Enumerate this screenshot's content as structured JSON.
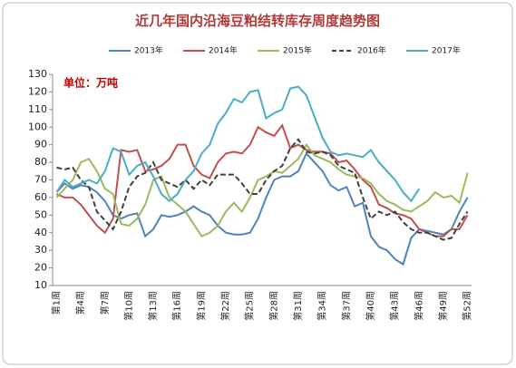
{
  "chart_data": {
    "type": "line",
    "title": "近几年国内沿海豆粕结转库存周度趋势图",
    "annotation": "单位：万吨",
    "categories": [
      "第1周",
      null,
      null,
      "第4周",
      null,
      null,
      "第7周",
      null,
      null,
      "第10周",
      null,
      null,
      "第13周",
      null,
      null,
      "第16周",
      null,
      null,
      "第19周",
      null,
      null,
      "第22周",
      null,
      null,
      "第25周",
      null,
      null,
      "第28周",
      null,
      null,
      "第31周",
      null,
      null,
      "第34周",
      null,
      null,
      "第37周",
      null,
      null,
      "第40周",
      null,
      null,
      "第43周",
      null,
      null,
      "第46周",
      null,
      null,
      "第49周",
      null,
      null,
      "第52周"
    ],
    "ylim": [
      10,
      130
    ],
    "yticks": [
      10,
      20,
      30,
      40,
      50,
      60,
      70,
      80,
      90,
      100,
      110,
      120,
      130
    ],
    "grid": false,
    "legend": "top",
    "series": [
      {
        "name": "2013年",
        "color": "#4f81bd",
        "style": "solid",
        "values": [
          63,
          68,
          65,
          67,
          66,
          63,
          58,
          50,
          48,
          50,
          51,
          38,
          42,
          50,
          49,
          50,
          52,
          55,
          52,
          50,
          44,
          40,
          39,
          39,
          40,
          48,
          60,
          70,
          72,
          72,
          75,
          85,
          80,
          75,
          67,
          64,
          66,
          55,
          57,
          38,
          32,
          30,
          25,
          22,
          37,
          42,
          41,
          40,
          39,
          42,
          52,
          60
        ]
      },
      {
        "name": "2014年",
        "color": "#c0504d",
        "style": "solid",
        "values": [
          62,
          60,
          60,
          56,
          50,
          44,
          40,
          48,
          87,
          86,
          87,
          75,
          76,
          78,
          82,
          90,
          90,
          78,
          73,
          71,
          80,
          85,
          86,
          85,
          90,
          100,
          97,
          95,
          101,
          88,
          90,
          87,
          86,
          86,
          85,
          80,
          81,
          76,
          70,
          66,
          56,
          54,
          51,
          50,
          48,
          42,
          40,
          38,
          38,
          42,
          42,
          50
        ]
      },
      {
        "name": "2015年",
        "color": "#9bbb59",
        "style": "solid",
        "values": [
          60,
          65,
          70,
          80,
          82,
          75,
          65,
          62,
          45,
          44,
          48,
          56,
          70,
          72,
          60,
          56,
          52,
          45,
          38,
          40,
          44,
          52,
          57,
          52,
          60,
          70,
          72,
          75,
          74,
          78,
          82,
          90,
          84,
          82,
          80,
          76,
          73,
          72,
          71,
          68,
          62,
          58,
          56,
          53,
          52,
          55,
          58,
          63,
          60,
          61,
          57,
          74
        ]
      },
      {
        "name": "2016年",
        "color": "#404040",
        "style": "dashed",
        "values": [
          77,
          76,
          77,
          70,
          66,
          52,
          47,
          42,
          52,
          66,
          72,
          74,
          80,
          70,
          68,
          66,
          70,
          65,
          70,
          67,
          73,
          73,
          73,
          68,
          62,
          62,
          70,
          75,
          78,
          88,
          93,
          86,
          85,
          86,
          84,
          78,
          76,
          74,
          60,
          48,
          52,
          50,
          52,
          46,
          42,
          40,
          40,
          38,
          36,
          37,
          45,
          52
        ]
      },
      {
        "name": "2017年",
        "color": "#4bacc6",
        "style": "solid",
        "values": [
          63,
          70,
          66,
          68,
          70,
          68,
          75,
          88,
          86,
          73,
          78,
          80,
          72,
          62,
          58,
          62,
          70,
          75,
          85,
          90,
          102,
          108,
          116,
          114,
          120,
          121,
          105,
          108,
          110,
          122,
          123,
          118,
          106,
          94,
          86,
          84,
          85,
          84,
          83,
          87,
          80,
          75,
          70,
          63,
          58,
          65,
          null,
          null,
          null,
          null,
          null,
          null
        ]
      }
    ]
  }
}
